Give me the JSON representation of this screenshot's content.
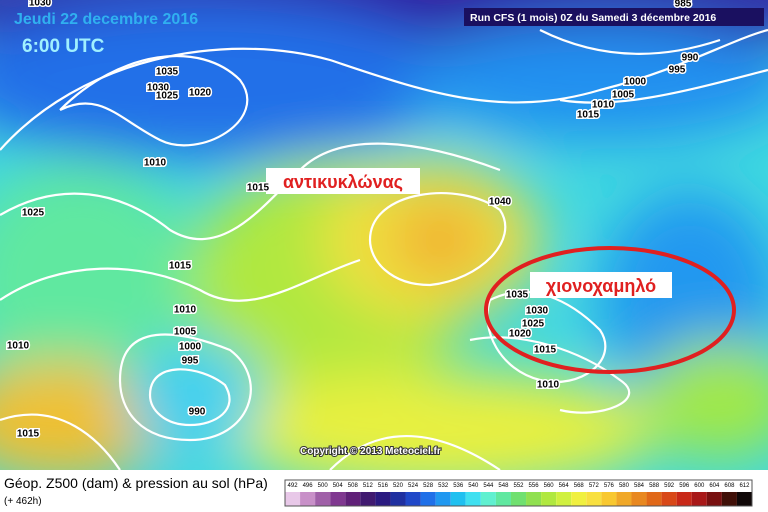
{
  "header": {
    "date": "Jeudi 22 decembre 2016",
    "time": "6:00 UTC",
    "run": "Run CFS (1 mois) 0Z du Samedi 3 décembre 2016"
  },
  "annotations": {
    "anticyclone": "αντικυκλώνας",
    "snow_low": "χιονοχαμηλό"
  },
  "copyright": "Copyright © 2013 Meteociel.fr",
  "footer": {
    "title": "Géop. Z500 (dam) & pression au sol (hPa)",
    "lead": "(+ 462h)"
  },
  "isobar_labels": [
    1030,
    1035,
    1030,
    1025,
    1020,
    1010,
    1015,
    1025,
    1015,
    1010,
    1005,
    1000,
    995,
    990,
    1010,
    1015,
    1040,
    1035,
    1030,
    1025,
    1020,
    1015,
    1010,
    985,
    990,
    995,
    1000,
    1005,
    1010,
    1015
  ],
  "colorbar": {
    "ticks": [
      492,
      496,
      500,
      504,
      508,
      512,
      516,
      520,
      524,
      528,
      532,
      536,
      540,
      544,
      548,
      552,
      556,
      560,
      564,
      568,
      572,
      576,
      580,
      584,
      588,
      592,
      596,
      600,
      604,
      608,
      612
    ],
    "colors": [
      "#e8c8e8",
      "#c890c8",
      "#a060a8",
      "#803890",
      "#602078",
      "#401a70",
      "#2a1a80",
      "#2030a0",
      "#2048c8",
      "#2070e8",
      "#2098f0",
      "#20c0f0",
      "#40e0f0",
      "#60f0d0",
      "#60e8a0",
      "#70e070",
      "#90e050",
      "#b0e840",
      "#d0f040",
      "#f0f040",
      "#f8e040",
      "#f8c830",
      "#f0a828",
      "#e88820",
      "#e06818",
      "#d84818",
      "#c82818",
      "#a81818",
      "#781010",
      "#401008",
      "#100808"
    ]
  }
}
